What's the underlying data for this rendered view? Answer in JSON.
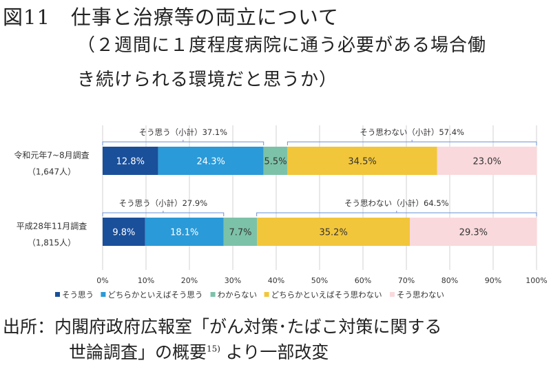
{
  "title": "図11　仕事と治療等の両立について",
  "subtitle_line1": "（２週間に１度程度病院に通う必要がある場合働",
  "subtitle_line2": "き続けられる環境だと思うか）",
  "source_line1": "出所：内閣府政府広報室「がん対策･たばこ対策に関する",
  "source_line2_a": "世論調査」の概要",
  "source_line2_ref": "15)",
  "source_line2_b": "より一部改変",
  "chart_data": {
    "type": "bar",
    "orientation": "horizontal-stacked-100",
    "categories": [
      {
        "label": "令和元年7~8月調査",
        "n": "（1,647人）"
      },
      {
        "label": "平成28年11月調査",
        "n": "（1,815人）"
      }
    ],
    "series": [
      {
        "name": "そう思う",
        "color": "#1a4f9a",
        "values": [
          12.8,
          9.8
        ]
      },
      {
        "name": "どちらかといえばそう思う",
        "color": "#2a9ad8",
        "values": [
          24.3,
          18.1
        ]
      },
      {
        "name": "わからない",
        "color": "#7cc2a8",
        "values": [
          5.5,
          7.7
        ]
      },
      {
        "name": "どちらかといえばそう思わない",
        "color": "#f2c63a",
        "values": [
          34.5,
          35.2
        ]
      },
      {
        "name": "そう思わない",
        "color": "#f9d9dc",
        "values": [
          23.0,
          29.3
        ]
      }
    ],
    "annotations": [
      [
        {
          "label": "そう思う（小計）",
          "value": "37.1%",
          "from": 0,
          "to": 37.1
        },
        {
          "label": "そう思わない（小計）",
          "value": "57.4%",
          "from": 42.6,
          "to": 100
        }
      ],
      [
        {
          "label": "そう思う（小計）",
          "value": "27.9%",
          "from": 0,
          "to": 27.9
        },
        {
          "label": "そう思わない（小計）",
          "value": "64.5%",
          "from": 35.5,
          "to": 100
        }
      ]
    ],
    "xticks": [
      "0%",
      "10%",
      "20%",
      "30%",
      "40%",
      "50%",
      "60%",
      "70%",
      "80%",
      "90%",
      "100%"
    ],
    "xlim": [
      0,
      100
    ],
    "grid": true,
    "legend": "bottom"
  }
}
